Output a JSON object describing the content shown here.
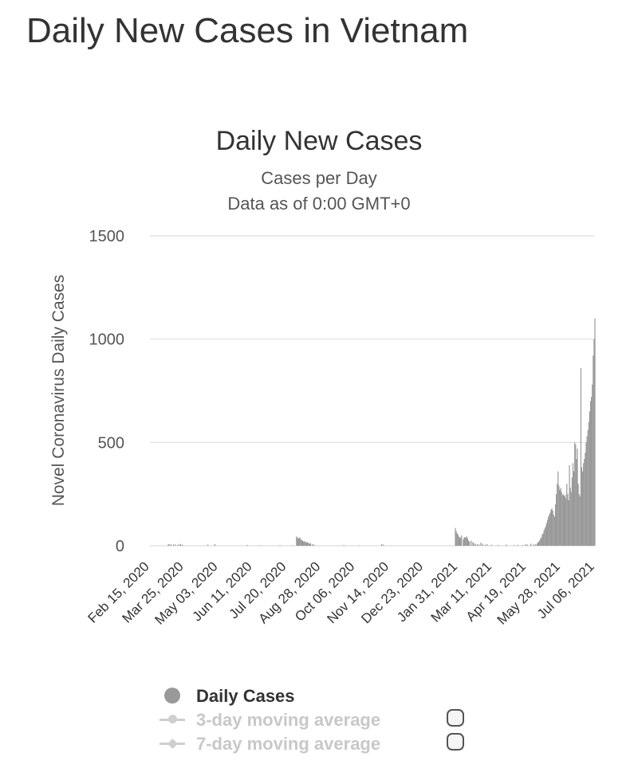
{
  "page": {
    "title": "Daily New Cases in Vietnam"
  },
  "colors": {
    "bar": "#999999",
    "grid": "#e4e4e4",
    "text": "#333333",
    "muted": "#c8c8c8"
  },
  "chart_data": {
    "type": "bar",
    "title": "Daily New Cases",
    "subtitle": "Cases per Day",
    "subtitle2": "Data as of 0:00 GMT+0",
    "xlabel": "",
    "ylabel": "Novel Coronavirus Daily Cases",
    "ylim": [
      0,
      1500
    ],
    "yticks": [
      0,
      500,
      1000,
      1500
    ],
    "grid": true,
    "x_start": "2020-02-15",
    "x_end": "2021-07-06",
    "x_ticks": [
      "Feb 15, 2020",
      "Mar 25, 2020",
      "May 03, 2020",
      "Jun 11, 2020",
      "Jul 20, 2020",
      "Aug 28, 2020",
      "Oct 06, 2020",
      "Nov 14, 2020",
      "Dec 23, 2020",
      "Jan 31, 2021",
      "Mar 11, 2021",
      "Apr 19, 2021",
      "May 28, 2021",
      "Jul 06, 2021"
    ],
    "series": [
      {
        "name": "Daily Cases",
        "points": [
          [
            "2020-03-07",
            8
          ],
          [
            "2020-03-08",
            6
          ],
          [
            "2020-03-10",
            8
          ],
          [
            "2020-03-13",
            7
          ],
          [
            "2020-03-15",
            6
          ],
          [
            "2020-03-18",
            6
          ],
          [
            "2020-03-20",
            5
          ],
          [
            "2020-03-21",
            9
          ],
          [
            "2020-03-23",
            5
          ],
          [
            "2020-04-21",
            6
          ],
          [
            "2020-04-29",
            8
          ],
          [
            "2020-06-05",
            4
          ],
          [
            "2020-06-20",
            3
          ],
          [
            "2020-07-12",
            3
          ],
          [
            "2020-07-26",
            2
          ],
          [
            "2020-07-31",
            45
          ],
          [
            "2020-08-01",
            40
          ],
          [
            "2020-08-02",
            35
          ],
          [
            "2020-08-03",
            38
          ],
          [
            "2020-08-04",
            40
          ],
          [
            "2020-08-05",
            30
          ],
          [
            "2020-08-06",
            28
          ],
          [
            "2020-08-07",
            25
          ],
          [
            "2020-08-08",
            20
          ],
          [
            "2020-08-09",
            22
          ],
          [
            "2020-08-10",
            20
          ],
          [
            "2020-08-11",
            15
          ],
          [
            "2020-08-12",
            18
          ],
          [
            "2020-08-13",
            15
          ],
          [
            "2020-08-14",
            12
          ],
          [
            "2020-08-15",
            10
          ],
          [
            "2020-08-16",
            12
          ],
          [
            "2020-08-18",
            8
          ],
          [
            "2020-08-20",
            6
          ],
          [
            "2020-09-23",
            4
          ],
          [
            "2020-10-10",
            2
          ],
          [
            "2020-11-05",
            8
          ],
          [
            "2020-11-07",
            6
          ],
          [
            "2021-01-28",
            86
          ],
          [
            "2021-01-29",
            70
          ],
          [
            "2021-01-30",
            60
          ],
          [
            "2021-01-31",
            55
          ],
          [
            "2021-02-01",
            45
          ],
          [
            "2021-02-02",
            40
          ],
          [
            "2021-02-03",
            38
          ],
          [
            "2021-02-04",
            50
          ],
          [
            "2021-02-06",
            30
          ],
          [
            "2021-02-07",
            40
          ],
          [
            "2021-02-08",
            42
          ],
          [
            "2021-02-09",
            40
          ],
          [
            "2021-02-10",
            45
          ],
          [
            "2021-02-11",
            35
          ],
          [
            "2021-02-12",
            25
          ],
          [
            "2021-02-13",
            20
          ],
          [
            "2021-02-15",
            25
          ],
          [
            "2021-02-17",
            18
          ],
          [
            "2021-02-18",
            12
          ],
          [
            "2021-02-20",
            10
          ],
          [
            "2021-02-22",
            8
          ],
          [
            "2021-02-24",
            6
          ],
          [
            "2021-02-26",
            15
          ],
          [
            "2021-02-28",
            10
          ],
          [
            "2021-03-03",
            5
          ],
          [
            "2021-03-05",
            8
          ],
          [
            "2021-03-10",
            5
          ],
          [
            "2021-03-18",
            4
          ],
          [
            "2021-03-27",
            6
          ],
          [
            "2021-04-05",
            4
          ],
          [
            "2021-04-09",
            5
          ],
          [
            "2021-04-14",
            4
          ],
          [
            "2021-04-18",
            8
          ],
          [
            "2021-04-20",
            6
          ],
          [
            "2021-04-24",
            10
          ],
          [
            "2021-04-27",
            6
          ],
          [
            "2021-04-29",
            8
          ],
          [
            "2021-05-01",
            10
          ],
          [
            "2021-05-02",
            15
          ],
          [
            "2021-05-03",
            20
          ],
          [
            "2021-05-04",
            25
          ],
          [
            "2021-05-05",
            35
          ],
          [
            "2021-05-06",
            40
          ],
          [
            "2021-05-07",
            55
          ],
          [
            "2021-05-08",
            60
          ],
          [
            "2021-05-09",
            75
          ],
          [
            "2021-05-10",
            85
          ],
          [
            "2021-05-11",
            95
          ],
          [
            "2021-05-12",
            110
          ],
          [
            "2021-05-13",
            125
          ],
          [
            "2021-05-14",
            140
          ],
          [
            "2021-05-15",
            150
          ],
          [
            "2021-05-16",
            160
          ],
          [
            "2021-05-17",
            175
          ],
          [
            "2021-05-18",
            180
          ],
          [
            "2021-05-19",
            170
          ],
          [
            "2021-05-20",
            150
          ],
          [
            "2021-05-21",
            140
          ],
          [
            "2021-05-22",
            200
          ],
          [
            "2021-05-23",
            250
          ],
          [
            "2021-05-24",
            300
          ],
          [
            "2021-05-25",
            360
          ],
          [
            "2021-05-26",
            290
          ],
          [
            "2021-05-27",
            270
          ],
          [
            "2021-05-28",
            280
          ],
          [
            "2021-05-29",
            260
          ],
          [
            "2021-05-30",
            245
          ],
          [
            "2021-05-31",
            250
          ],
          [
            "2021-06-01",
            240
          ],
          [
            "2021-06-02",
            245
          ],
          [
            "2021-06-03",
            230
          ],
          [
            "2021-06-04",
            300
          ],
          [
            "2021-06-05",
            250
          ],
          [
            "2021-06-06",
            220
          ],
          [
            "2021-06-07",
            390
          ],
          [
            "2021-06-08",
            280
          ],
          [
            "2021-06-09",
            260
          ],
          [
            "2021-06-10",
            330
          ],
          [
            "2021-06-11",
            400
          ],
          [
            "2021-06-12",
            360
          ],
          [
            "2021-06-13",
            500
          ],
          [
            "2021-06-14",
            490
          ],
          [
            "2021-06-15",
            420
          ],
          [
            "2021-06-16",
            470
          ],
          [
            "2021-06-17",
            300
          ],
          [
            "2021-06-18",
            250
          ],
          [
            "2021-06-19",
            240
          ],
          [
            "2021-06-20",
            860
          ],
          [
            "2021-06-21",
            380
          ],
          [
            "2021-06-22",
            360
          ],
          [
            "2021-06-23",
            400
          ],
          [
            "2021-06-24",
            420
          ],
          [
            "2021-06-25",
            450
          ],
          [
            "2021-06-26",
            500
          ],
          [
            "2021-06-27",
            530
          ],
          [
            "2021-06-28",
            560
          ],
          [
            "2021-06-29",
            600
          ],
          [
            "2021-06-30",
            650
          ],
          [
            "2021-07-01",
            700
          ],
          [
            "2021-07-02",
            720
          ],
          [
            "2021-07-03",
            780
          ],
          [
            "2021-07-04",
            920
          ],
          [
            "2021-07-05",
            1000
          ],
          [
            "2021-07-06",
            1100
          ]
        ]
      }
    ],
    "legend": {
      "items": [
        {
          "label": "Daily Cases",
          "marker": "circle",
          "active": true
        },
        {
          "label": "3-day moving average",
          "marker": "circle-line",
          "active": false
        },
        {
          "label": "7-day moving average",
          "marker": "diamond-line",
          "active": false
        }
      ]
    }
  }
}
